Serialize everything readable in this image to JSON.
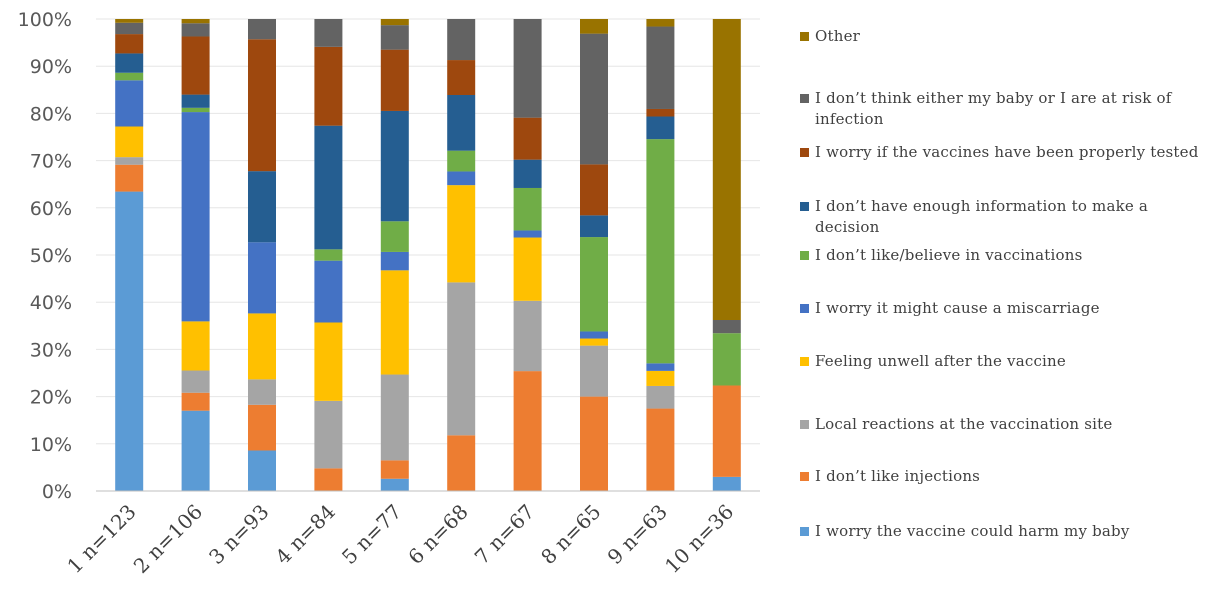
{
  "chart_data": {
    "type": "bar",
    "stacked": true,
    "percent": true,
    "title": "",
    "xlabel": "",
    "ylabel": "",
    "ylim": [
      0,
      100
    ],
    "yticks": [
      "0%",
      "10%",
      "20%",
      "30%",
      "40%",
      "50%",
      "60%",
      "70%",
      "80%",
      "90%",
      "100%"
    ],
    "categories": [
      "1 n=123",
      "2 n=106",
      "3 n=93",
      "4 n=84",
      "5 n=77",
      "6 n=68",
      "7 n=67",
      "8 n=65",
      "9 n=63",
      "10 n=36"
    ],
    "grid": true,
    "legend_position": "right",
    "series": [
      {
        "name": "I worry the vaccine could harm my baby",
        "color": "#5b9bd5",
        "values": [
          63.5,
          17.0,
          8.6,
          0,
          2.6,
          0,
          0,
          0,
          0,
          3.0
        ]
      },
      {
        "name": "I don't like injections",
        "color": "#ed7d31",
        "values": [
          5.7,
          3.8,
          9.7,
          4.8,
          3.9,
          11.8,
          25.4,
          20.0,
          17.5,
          19.4
        ]
      },
      {
        "name": "Local reactions at the vaccination site",
        "color": "#a5a5a5",
        "values": [
          1.6,
          4.7,
          5.4,
          14.3,
          18.2,
          32.4,
          14.9,
          10.8,
          4.8,
          0
        ]
      },
      {
        "name": "Feeling unwell after the vaccine",
        "color": "#ffc000",
        "values": [
          6.5,
          10.4,
          14.0,
          16.6,
          22.1,
          20.6,
          13.4,
          1.5,
          3.2,
          0
        ]
      },
      {
        "name": "I worry it might cause a miscarriage",
        "color": "#4472c4",
        "values": [
          9.8,
          44.3,
          15.1,
          13.1,
          3.9,
          2.9,
          1.5,
          1.5,
          1.6,
          0
        ]
      },
      {
        "name": "I don't like/believe in vaccinations",
        "color": "#70ad47",
        "values": [
          1.6,
          0.9,
          0,
          2.4,
          6.5,
          4.4,
          9.0,
          20.0,
          47.6,
          11.1
        ]
      },
      {
        "name": "I don't have enough information to make a decision",
        "color": "#255e91",
        "values": [
          4.1,
          2.8,
          15.1,
          26.2,
          23.4,
          11.8,
          6.0,
          4.6,
          4.8,
          0
        ]
      },
      {
        "name": "I worry if the vaccines have been properly tested",
        "color": "#9e480e",
        "values": [
          4.1,
          12.3,
          28.0,
          16.7,
          13.0,
          7.4,
          8.9,
          10.8,
          1.6,
          0
        ]
      },
      {
        "name": "I don't think either my baby or I are at risk of infection",
        "color": "#636363",
        "values": [
          2.4,
          2.8,
          4.3,
          5.9,
          5.2,
          8.7,
          20.9,
          27.7,
          17.5,
          2.8
        ]
      },
      {
        "name": "Other",
        "color": "#997300",
        "values": [
          0.8,
          0.9,
          0,
          0,
          1.3,
          0,
          0,
          3.1,
          1.6,
          63.9
        ]
      }
    ]
  },
  "legend_display": [
    {
      "label": "Other",
      "color": "#997300"
    },
    {
      "label": "I don’t think either my baby or I are at risk of infection",
      "color": "#636363"
    },
    {
      "label": "I worry if the vaccines have been properly tested",
      "color": "#9e480e"
    },
    {
      "label": "I don’t have enough information to make a decision",
      "color": "#255e91"
    },
    {
      "label": "I don’t like/believe  in vaccinations",
      "color": "#70ad47"
    },
    {
      "label": "I worry it might cause a miscarriage",
      "color": "#4472c4"
    },
    {
      "label": "Feeling unwell after the vaccine",
      "color": "#ffc000"
    },
    {
      "label": "Local reactions at the vaccination site",
      "color": "#a5a5a5"
    },
    {
      "label": "I don’t like  injections",
      "color": "#ed7d31"
    },
    {
      "label": "I worry the vaccine could harm my baby",
      "color": "#5b9bd5"
    }
  ]
}
